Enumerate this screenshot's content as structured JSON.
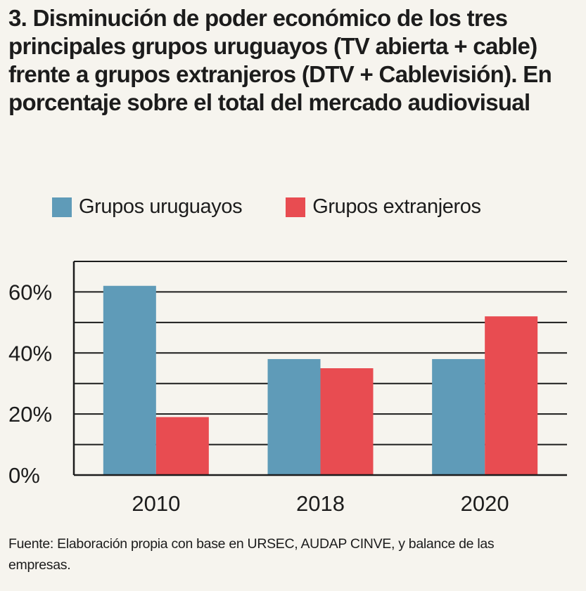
{
  "title": "3. Disminución de poder económico de los tres principales grupos uruguayos (TV abierta + cable) frente a grupos extranjeros (DTV + Cablevisión). En porcentaje sobre el total del mercado audiovisual",
  "source": "Fuente: Elaboración propia con base en URSEC, AUDAP CINVE, y balance de las empresas.",
  "chart_data": {
    "type": "bar",
    "title": "3. Disminución de poder económico de los tres principales grupos uruguayos (TV abierta + cable) frente a grupos extranjeros (DTV + Cablevisión). En porcentaje sobre el total del mercado audiovisual",
    "xlabel": "",
    "ylabel": "",
    "categories": [
      "2010",
      "2018",
      "2020"
    ],
    "series": [
      {
        "name": "Grupos uruguayos",
        "color": "#5f9bb8",
        "values": [
          62,
          38,
          38
        ]
      },
      {
        "name": "Grupos extranjeros",
        "color": "#e84c51",
        "values": [
          19,
          35,
          52
        ]
      }
    ],
    "ylim": [
      0,
      70
    ],
    "yticks": [
      0,
      20,
      40,
      60
    ],
    "ytick_labels": [
      "0%",
      "20%",
      "40%",
      "60%"
    ],
    "grid_step": 10,
    "grid": true,
    "legend_position": "top-left"
  }
}
